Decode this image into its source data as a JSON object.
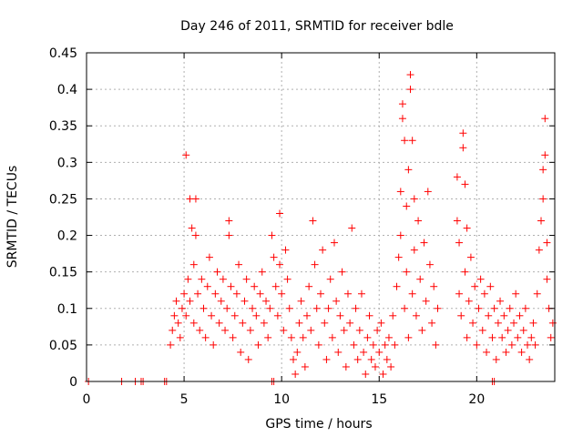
{
  "chart_data": {
    "type": "scatter",
    "title": "Day 246 of 2011, SRMTID for receiver bdle",
    "xlabel": "GPS time / hours",
    "ylabel": "SRMTID / TECUs",
    "xlim": [
      0,
      24
    ],
    "ylim": [
      0,
      0.45
    ],
    "xticks": [
      0,
      5,
      10,
      15,
      20
    ],
    "xtick_labels": [
      "0",
      "5",
      "10",
      "15",
      "20"
    ],
    "yticks": [
      0,
      0.05,
      0.1,
      0.15,
      0.2,
      0.25,
      0.3,
      0.35,
      0.4,
      0.45
    ],
    "ytick_labels": [
      "0",
      "0.05",
      "0.1",
      "0.15",
      "0.2",
      "0.25",
      "0.3",
      "0.35",
      "0.4",
      "0.45"
    ],
    "grid": true,
    "marker": "+",
    "color": "#ff0000",
    "series": [
      {
        "name": "SRMTID",
        "points": [
          [
            0.1,
            0.0
          ],
          [
            1.8,
            0.0
          ],
          [
            2.5,
            0.0
          ],
          [
            2.8,
            0.0
          ],
          [
            2.9,
            0.0
          ],
          [
            4.0,
            0.0
          ],
          [
            4.1,
            0.0
          ],
          [
            9.5,
            0.0
          ],
          [
            9.6,
            0.0
          ],
          [
            20.8,
            0.0
          ],
          [
            20.9,
            0.0
          ],
          [
            4.3,
            0.05
          ],
          [
            4.4,
            0.07
          ],
          [
            4.5,
            0.09
          ],
          [
            4.6,
            0.11
          ],
          [
            4.7,
            0.08
          ],
          [
            4.8,
            0.06
          ],
          [
            4.9,
            0.1
          ],
          [
            5.0,
            0.12
          ],
          [
            5.1,
            0.09
          ],
          [
            5.1,
            0.31
          ],
          [
            5.2,
            0.14
          ],
          [
            5.3,
            0.25
          ],
          [
            5.3,
            0.11
          ],
          [
            5.4,
            0.21
          ],
          [
            5.5,
            0.08
          ],
          [
            5.5,
            0.16
          ],
          [
            5.6,
            0.25
          ],
          [
            5.6,
            0.2
          ],
          [
            5.7,
            0.12
          ],
          [
            5.8,
            0.07
          ],
          [
            5.9,
            0.14
          ],
          [
            6.0,
            0.1
          ],
          [
            6.1,
            0.06
          ],
          [
            6.2,
            0.13
          ],
          [
            6.3,
            0.17
          ],
          [
            6.4,
            0.09
          ],
          [
            6.5,
            0.05
          ],
          [
            6.6,
            0.12
          ],
          [
            6.7,
            0.15
          ],
          [
            6.8,
            0.08
          ],
          [
            6.9,
            0.11
          ],
          [
            7.0,
            0.14
          ],
          [
            7.1,
            0.07
          ],
          [
            7.2,
            0.1
          ],
          [
            7.3,
            0.22
          ],
          [
            7.3,
            0.2
          ],
          [
            7.4,
            0.13
          ],
          [
            7.5,
            0.06
          ],
          [
            7.6,
            0.09
          ],
          [
            7.7,
            0.12
          ],
          [
            7.8,
            0.16
          ],
          [
            7.9,
            0.04
          ],
          [
            8.0,
            0.08
          ],
          [
            8.1,
            0.11
          ],
          [
            8.2,
            0.14
          ],
          [
            8.3,
            0.03
          ],
          [
            8.4,
            0.07
          ],
          [
            8.5,
            0.1
          ],
          [
            8.6,
            0.13
          ],
          [
            8.7,
            0.09
          ],
          [
            8.8,
            0.05
          ],
          [
            8.9,
            0.12
          ],
          [
            9.0,
            0.15
          ],
          [
            9.1,
            0.08
          ],
          [
            9.2,
            0.11
          ],
          [
            9.3,
            0.06
          ],
          [
            9.4,
            0.1
          ],
          [
            9.5,
            0.2
          ],
          [
            9.6,
            0.17
          ],
          [
            9.7,
            0.13
          ],
          [
            9.8,
            0.09
          ],
          [
            9.9,
            0.23
          ],
          [
            9.9,
            0.16
          ],
          [
            10.0,
            0.12
          ],
          [
            10.1,
            0.07
          ],
          [
            10.2,
            0.18
          ],
          [
            10.3,
            0.14
          ],
          [
            10.4,
            0.1
          ],
          [
            10.5,
            0.06
          ],
          [
            10.6,
            0.03
          ],
          [
            10.7,
            0.01
          ],
          [
            10.8,
            0.04
          ],
          [
            10.9,
            0.08
          ],
          [
            11.0,
            0.11
          ],
          [
            11.1,
            0.06
          ],
          [
            11.2,
            0.02
          ],
          [
            11.3,
            0.09
          ],
          [
            11.4,
            0.13
          ],
          [
            11.5,
            0.07
          ],
          [
            11.6,
            0.22
          ],
          [
            11.7,
            0.16
          ],
          [
            11.8,
            0.1
          ],
          [
            11.9,
            0.05
          ],
          [
            12.0,
            0.12
          ],
          [
            12.1,
            0.18
          ],
          [
            12.2,
            0.08
          ],
          [
            12.3,
            0.03
          ],
          [
            12.4,
            0.1
          ],
          [
            12.5,
            0.14
          ],
          [
            12.6,
            0.06
          ],
          [
            12.7,
            0.19
          ],
          [
            12.8,
            0.11
          ],
          [
            12.9,
            0.04
          ],
          [
            13.0,
            0.09
          ],
          [
            13.1,
            0.15
          ],
          [
            13.2,
            0.07
          ],
          [
            13.3,
            0.02
          ],
          [
            13.4,
            0.12
          ],
          [
            13.5,
            0.08
          ],
          [
            13.6,
            0.21
          ],
          [
            13.7,
            0.05
          ],
          [
            13.8,
            0.1
          ],
          [
            13.9,
            0.03
          ],
          [
            14.0,
            0.07
          ],
          [
            14.1,
            0.12
          ],
          [
            14.2,
            0.04
          ],
          [
            14.3,
            0.01
          ],
          [
            14.4,
            0.06
          ],
          [
            14.5,
            0.09
          ],
          [
            14.6,
            0.03
          ],
          [
            14.7,
            0.05
          ],
          [
            14.8,
            0.02
          ],
          [
            14.9,
            0.07
          ],
          [
            15.0,
            0.04
          ],
          [
            15.1,
            0.08
          ],
          [
            15.2,
            0.01
          ],
          [
            15.3,
            0.05
          ],
          [
            15.4,
            0.03
          ],
          [
            15.5,
            0.06
          ],
          [
            15.6,
            0.02
          ],
          [
            15.7,
            0.09
          ],
          [
            15.8,
            0.05
          ],
          [
            15.9,
            0.13
          ],
          [
            16.0,
            0.17
          ],
          [
            16.1,
            0.26
          ],
          [
            16.1,
            0.2
          ],
          [
            16.2,
            0.38
          ],
          [
            16.2,
            0.36
          ],
          [
            16.3,
            0.33
          ],
          [
            16.3,
            0.1
          ],
          [
            16.4,
            0.24
          ],
          [
            16.4,
            0.15
          ],
          [
            16.5,
            0.29
          ],
          [
            16.5,
            0.06
          ],
          [
            16.6,
            0.42
          ],
          [
            16.6,
            0.4
          ],
          [
            16.7,
            0.33
          ],
          [
            16.7,
            0.12
          ],
          [
            16.8,
            0.25
          ],
          [
            16.8,
            0.18
          ],
          [
            16.9,
            0.09
          ],
          [
            17.0,
            0.22
          ],
          [
            17.1,
            0.14
          ],
          [
            17.2,
            0.07
          ],
          [
            17.3,
            0.19
          ],
          [
            17.4,
            0.11
          ],
          [
            17.5,
            0.26
          ],
          [
            17.6,
            0.16
          ],
          [
            17.7,
            0.08
          ],
          [
            17.8,
            0.13
          ],
          [
            17.9,
            0.05
          ],
          [
            18.0,
            0.1
          ],
          [
            19.0,
            0.28
          ],
          [
            19.0,
            0.22
          ],
          [
            19.1,
            0.19
          ],
          [
            19.1,
            0.12
          ],
          [
            19.2,
            0.09
          ],
          [
            19.3,
            0.34
          ],
          [
            19.3,
            0.32
          ],
          [
            19.4,
            0.27
          ],
          [
            19.4,
            0.15
          ],
          [
            19.5,
            0.21
          ],
          [
            19.5,
            0.06
          ],
          [
            19.6,
            0.11
          ],
          [
            19.7,
            0.17
          ],
          [
            19.8,
            0.08
          ],
          [
            19.9,
            0.13
          ],
          [
            20.0,
            0.05
          ],
          [
            20.1,
            0.1
          ],
          [
            20.2,
            0.14
          ],
          [
            20.3,
            0.07
          ],
          [
            20.4,
            0.12
          ],
          [
            20.5,
            0.04
          ],
          [
            20.6,
            0.09
          ],
          [
            20.7,
            0.13
          ],
          [
            20.8,
            0.06
          ],
          [
            20.9,
            0.1
          ],
          [
            21.0,
            0.03
          ],
          [
            21.1,
            0.08
          ],
          [
            21.2,
            0.11
          ],
          [
            21.3,
            0.06
          ],
          [
            21.4,
            0.09
          ],
          [
            21.5,
            0.04
          ],
          [
            21.6,
            0.07
          ],
          [
            21.7,
            0.1
          ],
          [
            21.8,
            0.05
          ],
          [
            21.9,
            0.08
          ],
          [
            22.0,
            0.12
          ],
          [
            22.1,
            0.06
          ],
          [
            22.2,
            0.09
          ],
          [
            22.3,
            0.04
          ],
          [
            22.4,
            0.07
          ],
          [
            22.5,
            0.1
          ],
          [
            22.6,
            0.05
          ],
          [
            22.7,
            0.03
          ],
          [
            22.8,
            0.06
          ],
          [
            22.9,
            0.08
          ],
          [
            23.0,
            0.05
          ],
          [
            23.1,
            0.12
          ],
          [
            23.2,
            0.18
          ],
          [
            23.3,
            0.22
          ],
          [
            23.4,
            0.29
          ],
          [
            23.4,
            0.25
          ],
          [
            23.5,
            0.36
          ],
          [
            23.5,
            0.31
          ],
          [
            23.6,
            0.19
          ],
          [
            23.6,
            0.14
          ],
          [
            23.7,
            0.1
          ],
          [
            23.8,
            0.06
          ],
          [
            23.9,
            0.08
          ]
        ]
      }
    ]
  }
}
